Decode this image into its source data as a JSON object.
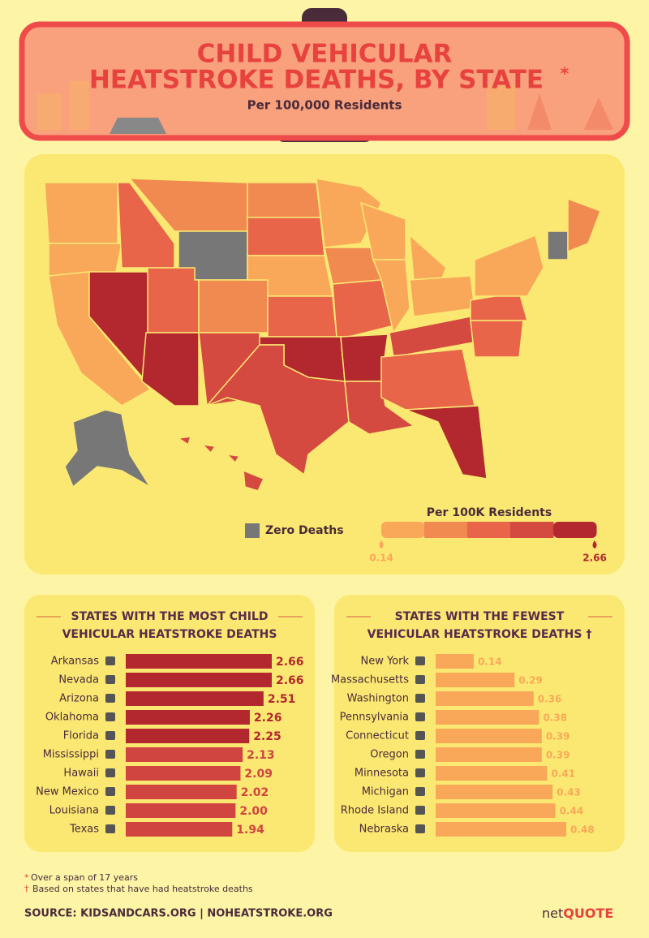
{
  "header": {
    "title_line1": "CHILD VEHICULAR",
    "title_line2": "HEATSTROKE DEATHS, BY STATE",
    "title_mark": "*",
    "subtitle": "Per 100,000 Residents"
  },
  "map_legend": {
    "zero_label": "Zero Deaths",
    "scale_title": "Per 100K Residents",
    "min": 0.14,
    "max": 2.66,
    "colors": [
      "#f9a85a",
      "#f08a50",
      "#e8654a",
      "#d44a40",
      "#b3282e"
    ]
  },
  "chart_data": [
    {
      "type": "bar",
      "orientation": "horizontal",
      "title_lines": [
        "STATES WITH THE MOST CHILD",
        "VEHICULAR HEATSTROKE DEATHS"
      ],
      "categories": [
        "Arkansas",
        "Nevada",
        "Arizona",
        "Oklahoma",
        "Florida",
        "Mississippi",
        "Hawaii",
        "New Mexico",
        "Louisiana",
        "Texas"
      ],
      "values": [
        2.66,
        2.66,
        2.51,
        2.26,
        2.25,
        2.13,
        2.09,
        2.02,
        2.0,
        1.94
      ],
      "value_labels": [
        "2.66",
        "2.66",
        "2.51",
        "2.26",
        "2.25",
        "2.13",
        "2.09",
        "2.02",
        "2.00",
        "1.94"
      ],
      "colors": [
        "#b3282e",
        "#b3282e",
        "#b3282e",
        "#b3282e",
        "#b3282e",
        "#d0453f",
        "#d0453f",
        "#d0453f",
        "#d0453f",
        "#d0453f"
      ]
    },
    {
      "type": "bar",
      "orientation": "horizontal",
      "title_lines": [
        "STATES WITH THE FEWEST",
        "VEHICULAR HEATSTROKE DEATHS †"
      ],
      "categories": [
        "New York",
        "Massachusetts",
        "Washington",
        "Pennsylvania",
        "Connecticut",
        "Oregon",
        "Minnesota",
        "Michigan",
        "Rhode Island",
        "Nebraska"
      ],
      "values": [
        0.14,
        0.29,
        0.36,
        0.38,
        0.39,
        0.39,
        0.41,
        0.43,
        0.44,
        0.48
      ],
      "color": "#f9a85a"
    }
  ],
  "footnotes": [
    {
      "mark": "*",
      "text": "Over a span of 17 years"
    },
    {
      "mark": "†",
      "text": "Based on states that have had heatstroke deaths"
    }
  ],
  "source": "SOURCE: KIDSANDCARS.ORG | NOHEATSTROKE.ORG",
  "logo": {
    "net": "net",
    "quote": "QUOTE"
  }
}
